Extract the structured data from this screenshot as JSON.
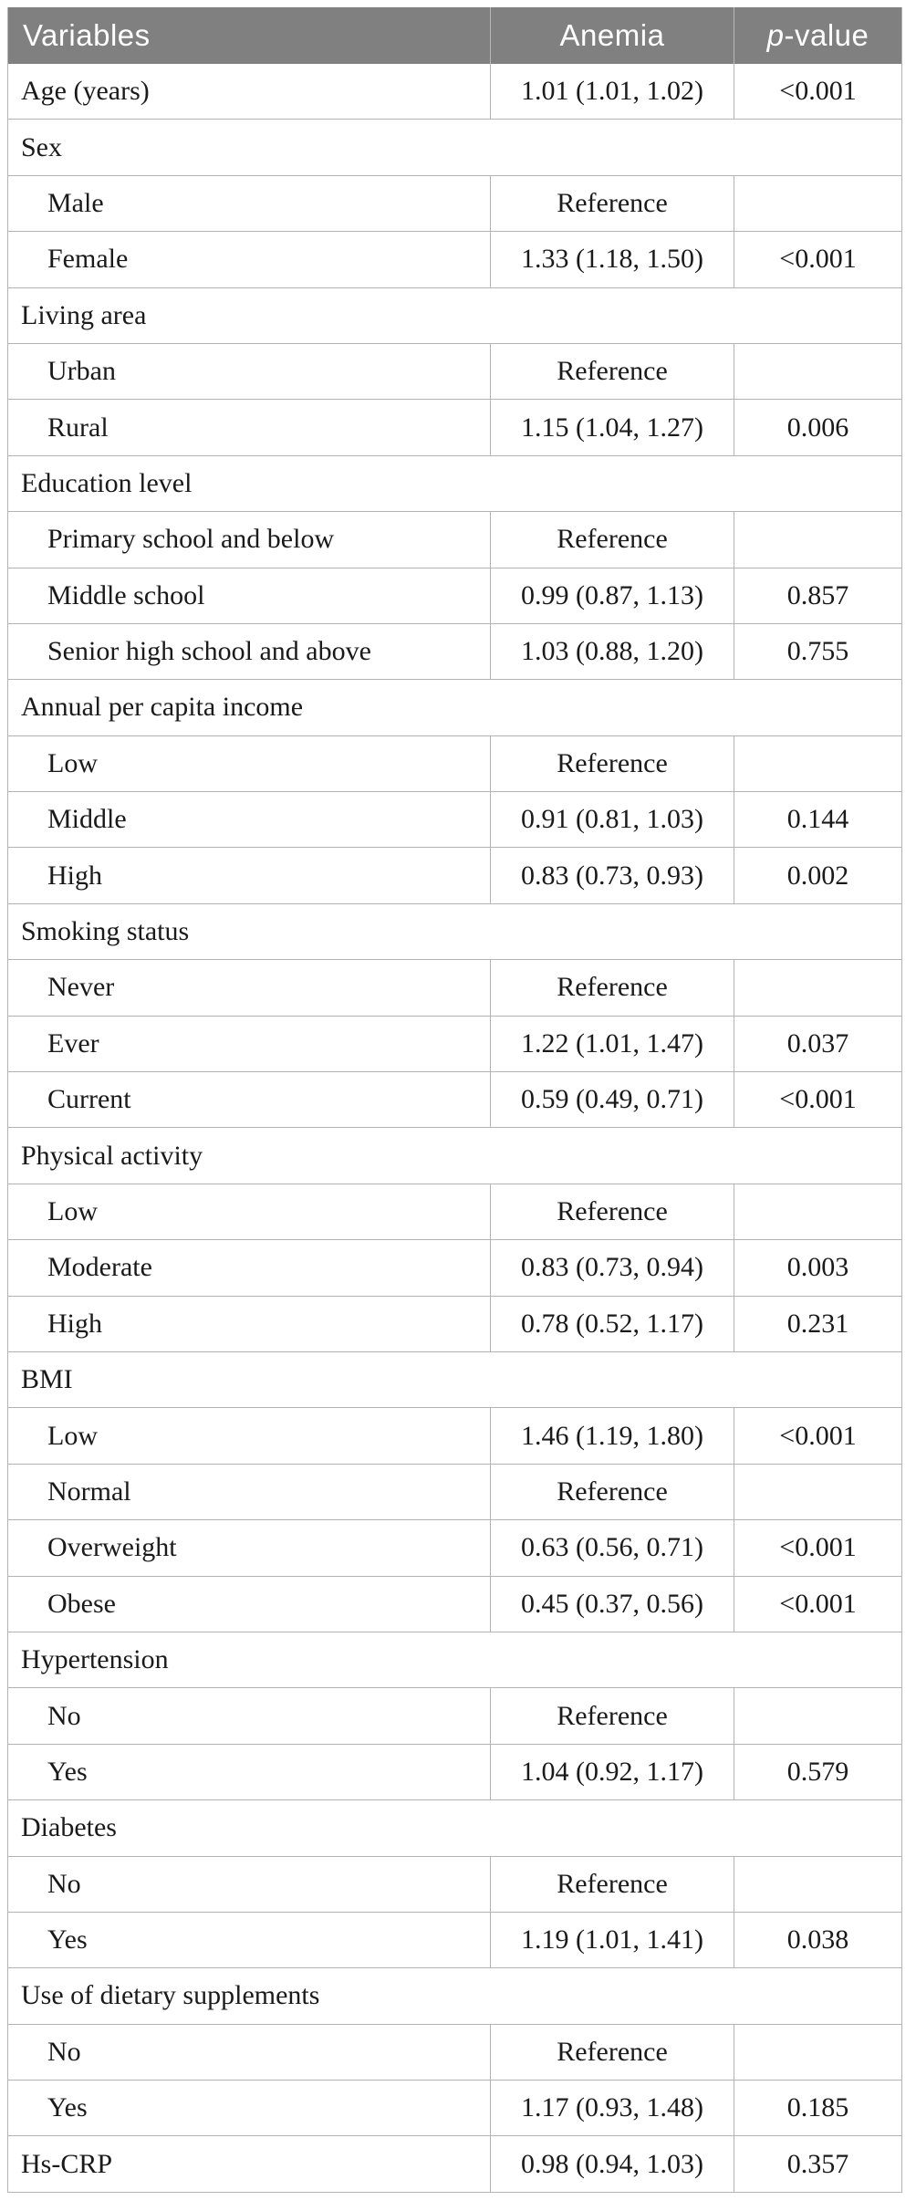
{
  "colors": {
    "header_bg": "#808080",
    "header_text": "#ffffff",
    "border": "#b3b3b3",
    "body_text": "#1a1a1a",
    "page_bg": "#ffffff"
  },
  "header": {
    "variables": "Variables",
    "anemia": "Anemia",
    "pvalue_italic": "p",
    "pvalue_rest": "-value"
  },
  "rows": [
    {
      "type": "data",
      "indent": false,
      "label": "Age (years)",
      "anemia": "1.01 (1.01, 1.02)",
      "p": "<0.001"
    },
    {
      "type": "group",
      "label": "Sex"
    },
    {
      "type": "data",
      "indent": true,
      "label": "Male",
      "anemia": "Reference",
      "p": ""
    },
    {
      "type": "data",
      "indent": true,
      "label": "Female",
      "anemia": "1.33 (1.18, 1.50)",
      "p": "<0.001"
    },
    {
      "type": "group",
      "label": "Living area"
    },
    {
      "type": "data",
      "indent": true,
      "label": "Urban",
      "anemia": "Reference",
      "p": ""
    },
    {
      "type": "data",
      "indent": true,
      "label": "Rural",
      "anemia": "1.15 (1.04, 1.27)",
      "p": "0.006"
    },
    {
      "type": "group",
      "label": "Education level"
    },
    {
      "type": "data",
      "indent": true,
      "label": "Primary school and below",
      "anemia": "Reference",
      "p": ""
    },
    {
      "type": "data",
      "indent": true,
      "label": "Middle school",
      "anemia": "0.99 (0.87, 1.13)",
      "p": "0.857"
    },
    {
      "type": "data",
      "indent": true,
      "label": "Senior high school and above",
      "anemia": "1.03 (0.88, 1.20)",
      "p": "0.755"
    },
    {
      "type": "group",
      "label": "Annual per capita income"
    },
    {
      "type": "data",
      "indent": true,
      "label": "Low",
      "anemia": "Reference",
      "p": ""
    },
    {
      "type": "data",
      "indent": true,
      "label": "Middle",
      "anemia": "0.91 (0.81, 1.03)",
      "p": "0.144"
    },
    {
      "type": "data",
      "indent": true,
      "label": "High",
      "anemia": "0.83 (0.73, 0.93)",
      "p": "0.002"
    },
    {
      "type": "group",
      "label": "Smoking status"
    },
    {
      "type": "data",
      "indent": true,
      "label": "Never",
      "anemia": "Reference",
      "p": ""
    },
    {
      "type": "data",
      "indent": true,
      "label": "Ever",
      "anemia": "1.22 (1.01, 1.47)",
      "p": "0.037"
    },
    {
      "type": "data",
      "indent": true,
      "label": "Current",
      "anemia": "0.59 (0.49, 0.71)",
      "p": "<0.001"
    },
    {
      "type": "group",
      "label": "Physical activity"
    },
    {
      "type": "data",
      "indent": true,
      "label": "Low",
      "anemia": "Reference",
      "p": ""
    },
    {
      "type": "data",
      "indent": true,
      "label": "Moderate",
      "anemia": "0.83 (0.73, 0.94)",
      "p": "0.003"
    },
    {
      "type": "data",
      "indent": true,
      "label": "High",
      "anemia": "0.78 (0.52, 1.17)",
      "p": "0.231"
    },
    {
      "type": "group",
      "label": "BMI"
    },
    {
      "type": "data",
      "indent": true,
      "label": "Low",
      "anemia": "1.46 (1.19, 1.80)",
      "p": "<0.001"
    },
    {
      "type": "data",
      "indent": true,
      "label": "Normal",
      "anemia": "Reference",
      "p": ""
    },
    {
      "type": "data",
      "indent": true,
      "label": "Overweight",
      "anemia": "0.63 (0.56, 0.71)",
      "p": "<0.001"
    },
    {
      "type": "data",
      "indent": true,
      "label": "Obese",
      "anemia": "0.45 (0.37, 0.56)",
      "p": "<0.001"
    },
    {
      "type": "group",
      "label": "Hypertension"
    },
    {
      "type": "data",
      "indent": true,
      "label": "No",
      "anemia": "Reference",
      "p": ""
    },
    {
      "type": "data",
      "indent": true,
      "label": "Yes",
      "anemia": "1.04 (0.92, 1.17)",
      "p": "0.579"
    },
    {
      "type": "group",
      "label": "Diabetes"
    },
    {
      "type": "data",
      "indent": true,
      "label": "No",
      "anemia": "Reference",
      "p": ""
    },
    {
      "type": "data",
      "indent": true,
      "label": "Yes",
      "anemia": "1.19 (1.01, 1.41)",
      "p": "0.038"
    },
    {
      "type": "group",
      "label": "Use of dietary supplements"
    },
    {
      "type": "data",
      "indent": true,
      "label": "No",
      "anemia": "Reference",
      "p": ""
    },
    {
      "type": "data",
      "indent": true,
      "label": "Yes",
      "anemia": "1.17 (0.93, 1.48)",
      "p": "0.185"
    },
    {
      "type": "data",
      "indent": false,
      "label": "Hs-CRP",
      "anemia": "0.98 (0.94, 1.03)",
      "p": "0.357"
    }
  ]
}
